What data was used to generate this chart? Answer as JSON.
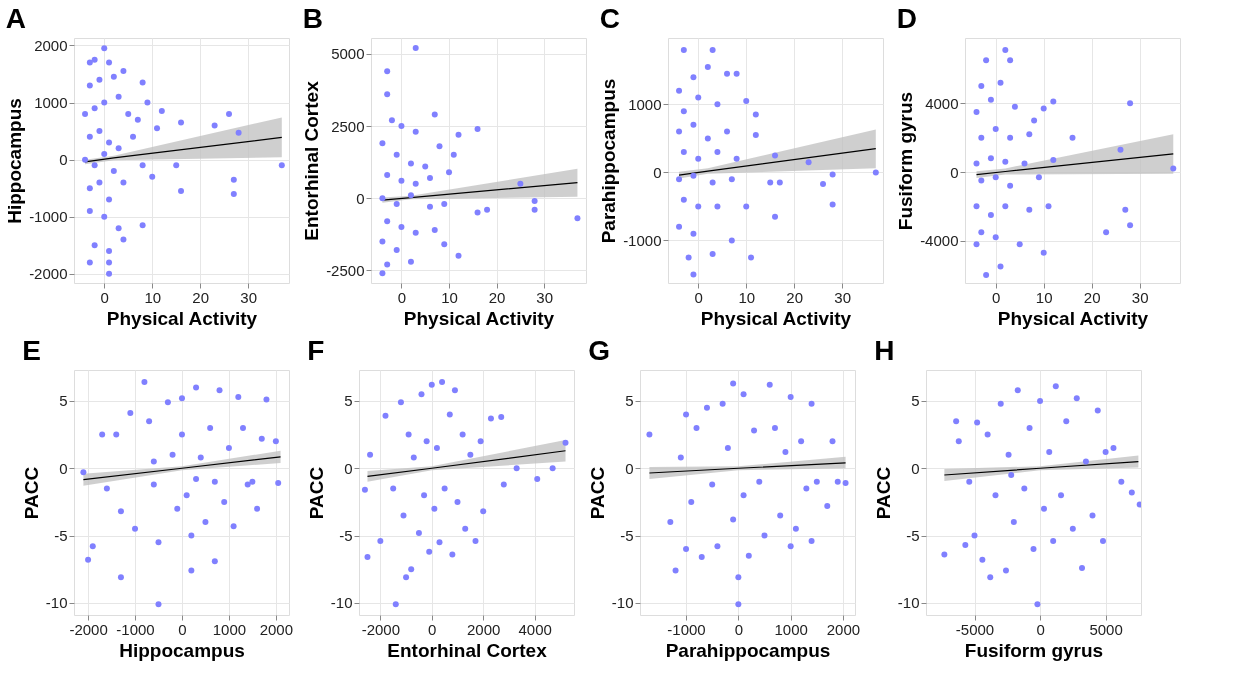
{
  "chart_data": [
    {
      "type": "scatter",
      "title": "A",
      "xlabel": "Physical Activity",
      "ylabel": "Hippocampus",
      "xlim": [
        -6.3,
        38.5
      ],
      "xticks": [
        0,
        10,
        20,
        30
      ],
      "ylim": [
        -2160,
        2130
      ],
      "yticks": [
        -2000,
        -1000,
        0,
        1000,
        2000
      ],
      "grid": true,
      "series": [
        {
          "marker": "circle",
          "color": "#8080ff",
          "x": [
            -3,
            -2,
            0,
            1,
            4,
            -3,
            -1,
            2,
            8,
            9,
            -4,
            -2,
            0,
            3,
            5,
            7,
            12,
            16,
            23,
            26,
            -3,
            -1,
            1,
            3,
            6,
            11,
            -4,
            -2,
            0,
            2,
            8,
            15,
            37,
            -3,
            -1,
            1,
            4,
            10,
            16,
            27,
            27,
            -3,
            0,
            3,
            8,
            -2,
            1,
            4,
            -3,
            1,
            1,
            28
          ],
          "values": [
            1700,
            1750,
            1950,
            1700,
            1550,
            1300,
            1400,
            1450,
            1350,
            1000,
            800,
            900,
            1000,
            1100,
            800,
            700,
            850,
            650,
            600,
            800,
            400,
            500,
            300,
            200,
            400,
            550,
            0,
            -100,
            100,
            -200,
            -100,
            -100,
            -100,
            -500,
            -400,
            -700,
            -400,
            -300,
            -550,
            -350,
            -600,
            -900,
            -1000,
            -1200,
            -1150,
            -1500,
            -1600,
            -1400,
            -1800,
            -1800,
            -2000,
            470
          ]
        },
        {
          "type": "line",
          "color": "#000000",
          "x": [
            -4,
            2,
            37
          ],
          "values": [
            -40,
            30,
            390
          ],
          "lower": [
            -80,
            -10,
            40
          ],
          "upper": [
            0,
            70,
            740
          ]
        }
      ]
    },
    {
      "type": "scatter",
      "title": "B",
      "xlabel": "Physical Activity",
      "ylabel": "Entorhinal Cortex",
      "xlim": [
        -6.4,
        38.8
      ],
      "xticks": [
        0,
        10,
        20,
        30
      ],
      "ylim": [
        -2940,
        5550
      ],
      "yticks": [
        -2500,
        0,
        2500,
        5000
      ],
      "grid": true,
      "series": [
        {
          "marker": "circle",
          "color": "#8080ff",
          "x": [
            -3,
            -3,
            3,
            -2,
            0,
            3,
            7,
            12,
            16,
            -4,
            -1,
            2,
            5,
            8,
            11,
            -3,
            0,
            3,
            6,
            10,
            25,
            -4,
            -1,
            2,
            6,
            9,
            16,
            28,
            37,
            -3,
            0,
            3,
            7,
            12,
            -4,
            -1,
            2,
            -4,
            -3,
            9,
            28,
            18
          ],
          "values": [
            4400,
            3600,
            5200,
            2700,
            2500,
            2300,
            2900,
            2200,
            2400,
            1900,
            1500,
            1200,
            1100,
            1800,
            1500,
            800,
            600,
            500,
            700,
            900,
            500,
            0,
            -200,
            100,
            -300,
            -200,
            -500,
            -100,
            -700,
            -800,
            -1000,
            -1200,
            -1100,
            -2000,
            -1500,
            -1800,
            -2200,
            -2600,
            -2300,
            -1600,
            -400,
            -400
          ]
        },
        {
          "type": "line",
          "color": "#000000",
          "x": [
            -4,
            2,
            37
          ],
          "values": [
            -70,
            20,
            540
          ],
          "lower": [
            -160,
            -40,
            50
          ],
          "upper": [
            20,
            80,
            1020
          ]
        }
      ]
    },
    {
      "type": "scatter",
      "title": "C",
      "xlabel": "Physical Activity",
      "ylabel": "Parahippocampus",
      "xlim": [
        -6.3,
        38.5
      ],
      "xticks": [
        0,
        10,
        20,
        30
      ],
      "ylim": [
        -1625,
        1975
      ],
      "yticks": [
        -1000,
        0,
        1000
      ],
      "grid": true,
      "series": [
        {
          "marker": "circle",
          "color": "#8080ff",
          "x": [
            -3,
            3,
            2,
            -4,
            -1,
            6,
            8,
            -3,
            0,
            4,
            10,
            12,
            -4,
            -1,
            2,
            6,
            12,
            -3,
            0,
            4,
            8,
            16,
            23,
            -4,
            -1,
            3,
            7,
            15,
            17,
            26,
            28,
            37,
            -3,
            0,
            4,
            10,
            -4,
            -1,
            3,
            7,
            11,
            16,
            28,
            -2,
            -1
          ],
          "values": [
            1800,
            1800,
            1550,
            1200,
            1400,
            1450,
            1450,
            900,
            1100,
            1000,
            1050,
            850,
            600,
            700,
            500,
            600,
            550,
            300,
            200,
            300,
            200,
            250,
            150,
            -100,
            -50,
            -150,
            -100,
            -150,
            -150,
            -170,
            -30,
            0,
            -400,
            -500,
            -500,
            -500,
            -800,
            -900,
            -1200,
            -1000,
            -1250,
            -650,
            -470,
            -1250,
            -1500
          ]
        },
        {
          "type": "line",
          "color": "#000000",
          "x": [
            -4,
            2,
            37
          ],
          "values": [
            -40,
            20,
            350
          ],
          "lower": [
            -90,
            -20,
            60
          ],
          "upper": [
            10,
            60,
            630
          ]
        }
      ]
    },
    {
      "type": "scatter",
      "title": "D",
      "xlabel": "Physical Activity",
      "ylabel": "Fusiform gyrus",
      "xlim": [
        -6.4,
        38.4
      ],
      "xticks": [
        0,
        10,
        20,
        30
      ],
      "ylim": [
        -6460,
        7800
      ],
      "yticks": [
        -4000,
        0,
        4000
      ],
      "grid": true,
      "series": [
        {
          "marker": "circle",
          "color": "#8080ff",
          "x": [
            -2,
            2,
            3,
            -3,
            1,
            -4,
            -1,
            4,
            8,
            10,
            12,
            28,
            -3,
            0,
            3,
            7,
            16,
            -4,
            -1,
            2,
            6,
            12,
            26,
            -3,
            0,
            3,
            9,
            37,
            -4,
            -1,
            2,
            7,
            11,
            -3,
            0,
            5,
            10,
            23,
            27,
            28,
            -2,
            1,
            -4
          ],
          "values": [
            6500,
            7100,
            6500,
            5000,
            5200,
            3500,
            4200,
            3800,
            3000,
            3700,
            4100,
            4000,
            2000,
            2500,
            2000,
            2200,
            2000,
            500,
            800,
            600,
            500,
            700,
            1300,
            -500,
            -300,
            -800,
            -300,
            200,
            -2000,
            -2500,
            -2000,
            -2200,
            -2000,
            -3500,
            -3800,
            -4200,
            -4700,
            -3500,
            -2200,
            -3100,
            -6000,
            -5500,
            -4200
          ]
        },
        {
          "type": "line",
          "color": "#000000",
          "x": [
            -4,
            2,
            37
          ],
          "values": [
            -150,
            30,
            1050
          ],
          "lower": [
            -350,
            -150,
            -100
          ],
          "upper": [
            50,
            210,
            2200
          ]
        }
      ]
    },
    {
      "type": "scatter",
      "title": "E",
      "xlabel": "Hippocampus",
      "ylabel": "PACC",
      "xlim": [
        -2300,
        2280
      ],
      "xticks": [
        -2000,
        -1000,
        0,
        1000,
        2000
      ],
      "ylim": [
        -10.9,
        7.3
      ],
      "yticks": [
        -10,
        -5,
        0,
        5
      ],
      "grid": true,
      "series": [
        {
          "marker": "circle",
          "color": "#8080ff",
          "x": [
            -2000,
            -1900,
            -1300,
            -500,
            200,
            700,
            -1700,
            -1600,
            -1400,
            -1300,
            -1100,
            -1000,
            -800,
            -700,
            -600,
            -500,
            -300,
            -200,
            -100,
            0,
            0,
            100,
            200,
            300,
            400,
            500,
            600,
            700,
            800,
            900,
            1000,
            1100,
            1200,
            1300,
            1400,
            1500,
            1600,
            1700,
            1800,
            2000,
            2050,
            -2100,
            300,
            -600
          ],
          "values": [
            -6.8,
            -5.8,
            -8.1,
            -10.1,
            -7.6,
            -6.9,
            2.5,
            -1.5,
            2.5,
            -3.2,
            4.1,
            -4.5,
            6.4,
            3.5,
            -1.2,
            -5.5,
            4.9,
            1.0,
            -3.0,
            2.5,
            5.2,
            -2.0,
            -5.0,
            6.0,
            0.8,
            -4.0,
            3.0,
            -1.0,
            5.8,
            -2.5,
            1.5,
            -4.3,
            5.3,
            3.0,
            -1.2,
            -1.0,
            -3.0,
            2.2,
            5.1,
            2.0,
            -1.1,
            -0.3,
            -0.8,
            0.5
          ]
        },
        {
          "type": "line",
          "color": "#000000",
          "x": [
            -2100,
            0,
            2100
          ],
          "values": [
            -0.85,
            0,
            0.85
          ],
          "lower": [
            -1.3,
            -0.15,
            0.4
          ],
          "upper": [
            -0.4,
            0.15,
            1.3
          ]
        }
      ]
    },
    {
      "type": "scatter",
      "title": "F",
      "xlabel": "Entorhinal Cortex",
      "ylabel": "PACC",
      "xlim": [
        -2830,
        5530
      ],
      "xticks": [
        -2000,
        0,
        2000,
        4000
      ],
      "ylim": [
        -10.9,
        7.3
      ],
      "yticks": [
        -10,
        -5,
        0,
        5
      ],
      "grid": true,
      "series": [
        {
          "marker": "circle",
          "color": "#8080ff",
          "x": [
            -2500,
            -2400,
            -2000,
            -1800,
            -1500,
            -1400,
            -1200,
            -1100,
            -1000,
            -900,
            -800,
            -700,
            -500,
            -400,
            -300,
            -200,
            -100,
            0,
            100,
            200,
            300,
            400,
            500,
            700,
            800,
            900,
            1000,
            1200,
            1300,
            1500,
            1700,
            1900,
            2000,
            2300,
            2700,
            2800,
            3300,
            4100,
            4700,
            5200,
            -2600
          ],
          "values": [
            -6.6,
            1.0,
            -5.4,
            3.9,
            -1.5,
            -10.1,
            4.9,
            -3.5,
            -8.1,
            2.5,
            -7.5,
            0.8,
            -4.8,
            5.5,
            -2.0,
            2.0,
            -6.2,
            6.2,
            -3.0,
            1.5,
            -5.5,
            6.4,
            -1.5,
            4.0,
            -6.4,
            5.8,
            -2.5,
            2.5,
            -4.5,
            1.0,
            -5.4,
            2.0,
            -3.2,
            3.7,
            3.8,
            -1.2,
            0,
            -0.8,
            0,
            1.9,
            -1.6
          ]
        },
        {
          "type": "line",
          "color": "#000000",
          "x": [
            -2500,
            0,
            5200
          ],
          "values": [
            -0.6,
            0,
            1.3
          ],
          "lower": [
            -1.0,
            -0.15,
            0.5
          ],
          "upper": [
            -0.2,
            0.15,
            2.1
          ]
        }
      ]
    },
    {
      "type": "scatter",
      "title": "G",
      "xlabel": "Parahippocampus",
      "ylabel": "PACC",
      "xlim": [
        -1880,
        2230
      ],
      "xticks": [
        -1000,
        0,
        1000,
        2000
      ],
      "ylim": [
        -10.9,
        7.3
      ],
      "yticks": [
        -10,
        -5,
        0,
        5
      ],
      "grid": true,
      "series": [
        {
          "marker": "circle",
          "color": "#8080ff",
          "x": [
            -1700,
            -1200,
            -1300,
            -1100,
            -1000,
            -1000,
            -900,
            -800,
            -700,
            -600,
            -500,
            -400,
            -300,
            -200,
            -100,
            -100,
            0,
            0,
            100,
            100,
            200,
            300,
            400,
            500,
            600,
            700,
            800,
            900,
            1000,
            1000,
            1100,
            1200,
            1300,
            1400,
            1400,
            1500,
            1700,
            1800,
            1900,
            2050
          ],
          "values": [
            2.5,
            -7.6,
            -4.0,
            0.8,
            -6.0,
            4.0,
            -2.5,
            3.0,
            -6.6,
            4.5,
            -1.2,
            -5.8,
            4.8,
            1.5,
            -3.8,
            6.3,
            -10.1,
            -8.1,
            5.5,
            -2.0,
            -6.5,
            2.8,
            -1.0,
            -5.0,
            6.2,
            3.0,
            -3.5,
            1.2,
            5.3,
            -5.8,
            -4.5,
            2.0,
            -1.5,
            4.8,
            -5.4,
            -1.0,
            -2.8,
            2.0,
            -1.0,
            -1.1
          ]
        },
        {
          "type": "line",
          "color": "#000000",
          "x": [
            -1700,
            0,
            2050
          ],
          "values": [
            -0.35,
            0,
            0.4
          ],
          "lower": [
            -0.8,
            -0.15,
            0
          ],
          "upper": [
            0.1,
            0.15,
            0.85
          ]
        }
      ]
    },
    {
      "type": "scatter",
      "title": "H",
      "xlabel": "Fusiform gyrus",
      "ylabel": "PACC",
      "xlim": [
        -8700,
        7700
      ],
      "xticks": [
        -5000,
        0,
        5000
      ],
      "ylim": [
        -10.9,
        7.3
      ],
      "yticks": [
        -10,
        -5,
        0,
        5
      ],
      "grid": true,
      "series": [
        {
          "marker": "circle",
          "color": "#8080ff",
          "x": [
            -7300,
            -6400,
            -6200,
            -5700,
            -5400,
            -5000,
            -4800,
            -4400,
            -4000,
            -3800,
            -3400,
            -3000,
            -2600,
            -2400,
            -2000,
            -1700,
            -1200,
            -800,
            -500,
            -200,
            0,
            300,
            700,
            1000,
            1200,
            1600,
            2000,
            2500,
            2800,
            3200,
            3500,
            4000,
            4400,
            4800,
            5000,
            5600,
            6200,
            7000,
            7600,
            -2200
          ],
          "values": [
            -6.4,
            3.5,
            2.0,
            -5.7,
            -1.0,
            -5.0,
            3.4,
            -6.8,
            2.5,
            -8.1,
            -2.0,
            4.8,
            -7.6,
            1.0,
            -4.0,
            5.8,
            -1.5,
            3.0,
            -6.0,
            -10.1,
            5.0,
            -3.0,
            1.2,
            -5.4,
            6.1,
            -2.0,
            3.5,
            -4.5,
            5.2,
            -7.4,
            0.5,
            -3.5,
            4.3,
            -5.4,
            1.2,
            1.5,
            -1.0,
            -1.8,
            -2.7,
            -0.5
          ]
        },
        {
          "type": "line",
          "color": "#000000",
          "x": [
            -7300,
            0,
            7500
          ],
          "values": [
            -0.5,
            0,
            0.5
          ],
          "lower": [
            -0.95,
            -0.15,
            0.05
          ],
          "upper": [
            -0.05,
            0.15,
            0.95
          ]
        }
      ]
    }
  ]
}
